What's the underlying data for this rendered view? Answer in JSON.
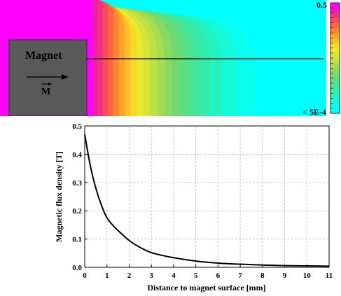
{
  "field_map": {
    "magnet_label": "Magnet",
    "magnetization_label": "M",
    "colorbar_max_label": "0.5",
    "colorbar_min_label": "< 5E-4",
    "colormap": [
      "#00ffff",
      "#08fdee",
      "#14f9d8",
      "#22f3c0",
      "#34ecaa",
      "#46e596",
      "#5cde82",
      "#72d970",
      "#8cd860",
      "#a6dc50",
      "#bfe042",
      "#d6e436",
      "#ece82c",
      "#f6d928",
      "#fdbf26",
      "#fea22a",
      "#fe8434",
      "#fd6442",
      "#f94a62",
      "#f23088",
      "#ee1cb0",
      "#ff00ff"
    ],
    "magnet_color": "#595959",
    "scan_line_color": "#000000"
  },
  "chart_data": {
    "type": "line",
    "title": "",
    "xlabel": "Distance to magnet surface [mm]",
    "ylabel": "Magnetic flux density [T]",
    "xlim": [
      0,
      11
    ],
    "ylim": [
      0,
      0.5
    ],
    "grid": true,
    "x_ticks": [
      "0",
      "1",
      "2",
      "3",
      "4",
      "5",
      "6",
      "7",
      "8",
      "9",
      "10",
      "11"
    ],
    "y_ticks": [
      "0.0",
      "0.1",
      "0.2",
      "0.3",
      "0.4",
      "0.5"
    ],
    "series": [
      {
        "color": "#000000",
        "x": [
          0,
          0.25,
          0.5,
          0.75,
          1,
          1.25,
          1.5,
          2,
          2.5,
          3,
          3.5,
          4,
          5,
          6,
          7,
          8,
          9,
          10,
          11
        ],
        "y": [
          0.47,
          0.36,
          0.28,
          0.22,
          0.175,
          0.15,
          0.13,
          0.095,
          0.07,
          0.052,
          0.042,
          0.034,
          0.022,
          0.015,
          0.011,
          0.008,
          0.006,
          0.005,
          0.004
        ]
      }
    ]
  }
}
